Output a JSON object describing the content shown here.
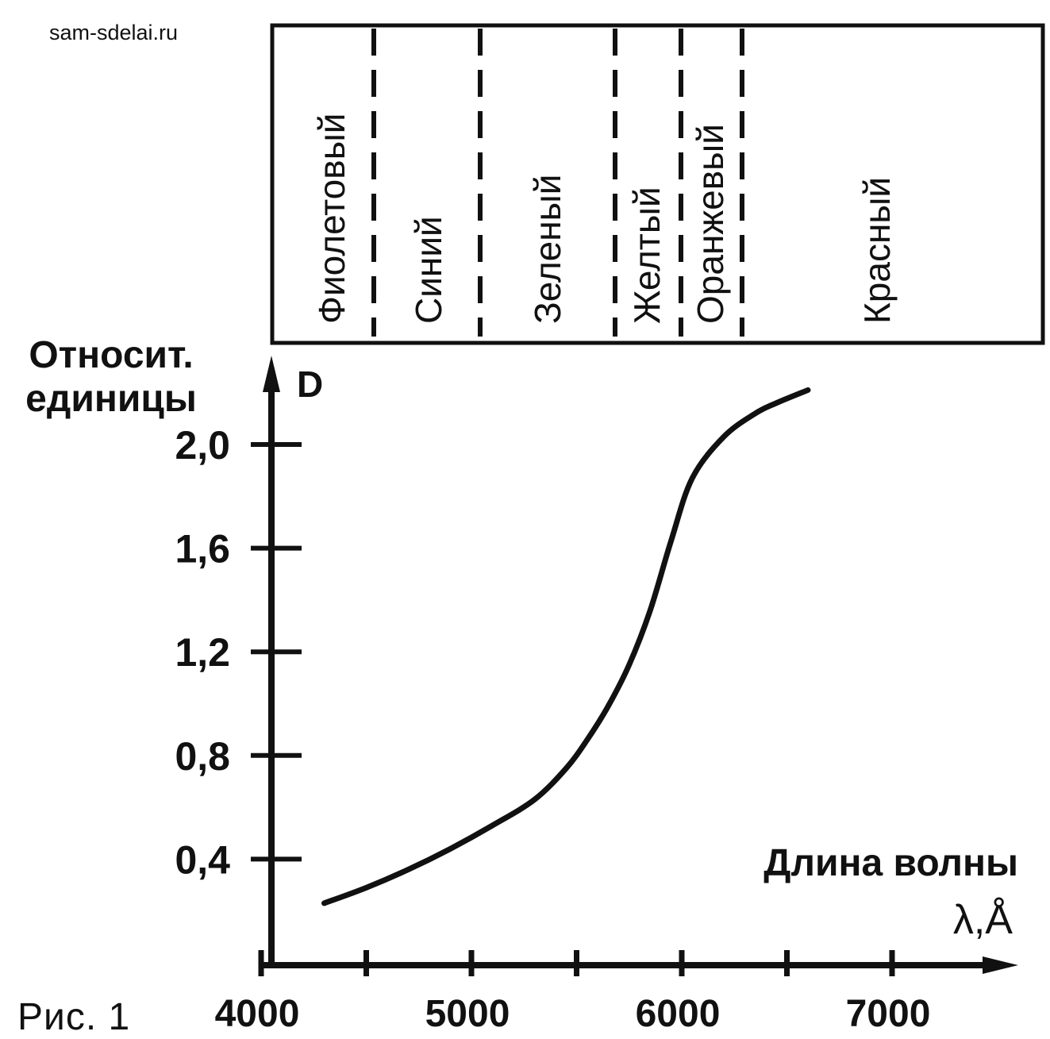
{
  "watermark": "sam-sdelai.ru",
  "figure_label": "Рис. 1",
  "colors": {
    "ink": "#111111",
    "background": "#ffffff"
  },
  "chart_data": {
    "type": "line",
    "title": "",
    "ylabel": "Относит. единицы",
    "ylabel_lines": [
      "Относит.",
      "единицы"
    ],
    "y_symbol": "D",
    "xlabel": "Длина волны",
    "x_symbol": "λ,Å",
    "xlim": [
      4000,
      7400
    ],
    "ylim": [
      0,
      2.35
    ],
    "x_ticks": [
      4000,
      4500,
      5000,
      5500,
      6000,
      6500,
      7000
    ],
    "x_tick_labels": [
      "4000",
      "5000",
      "6000",
      "7000"
    ],
    "x_tick_label_values": [
      4000,
      5000,
      6000,
      7000
    ],
    "y_ticks": [
      0.4,
      0.8,
      1.2,
      1.6,
      2.0
    ],
    "y_tick_labels": [
      "0,4",
      "0,8",
      "1,2",
      "1,6",
      "2,0"
    ],
    "grid": false,
    "series": [
      {
        "x": [
          4300,
          4500,
          4700,
          4900,
          5100,
          5300,
          5450,
          5550,
          5650,
          5750,
          5850,
          5950,
          6050,
          6200,
          6350,
          6450,
          6600
        ],
        "y": [
          0.23,
          0.29,
          0.36,
          0.44,
          0.53,
          0.63,
          0.75,
          0.86,
          0.99,
          1.15,
          1.36,
          1.63,
          1.87,
          2.03,
          2.12,
          2.16,
          2.21
        ]
      }
    ],
    "color_bands": [
      {
        "label": "Фиолетовый",
        "from": 4000,
        "to": 4480
      },
      {
        "label": "Синий",
        "from": 4480,
        "to": 4960
      },
      {
        "label": "Зеленый",
        "from": 4960,
        "to": 5700
      },
      {
        "label": "Желтый",
        "from": 5700,
        "to": 6000
      },
      {
        "label": "Оранжевый",
        "from": 6000,
        "to": 6300
      },
      {
        "label": "Красный",
        "from": 6300,
        "to": 7400
      }
    ]
  }
}
